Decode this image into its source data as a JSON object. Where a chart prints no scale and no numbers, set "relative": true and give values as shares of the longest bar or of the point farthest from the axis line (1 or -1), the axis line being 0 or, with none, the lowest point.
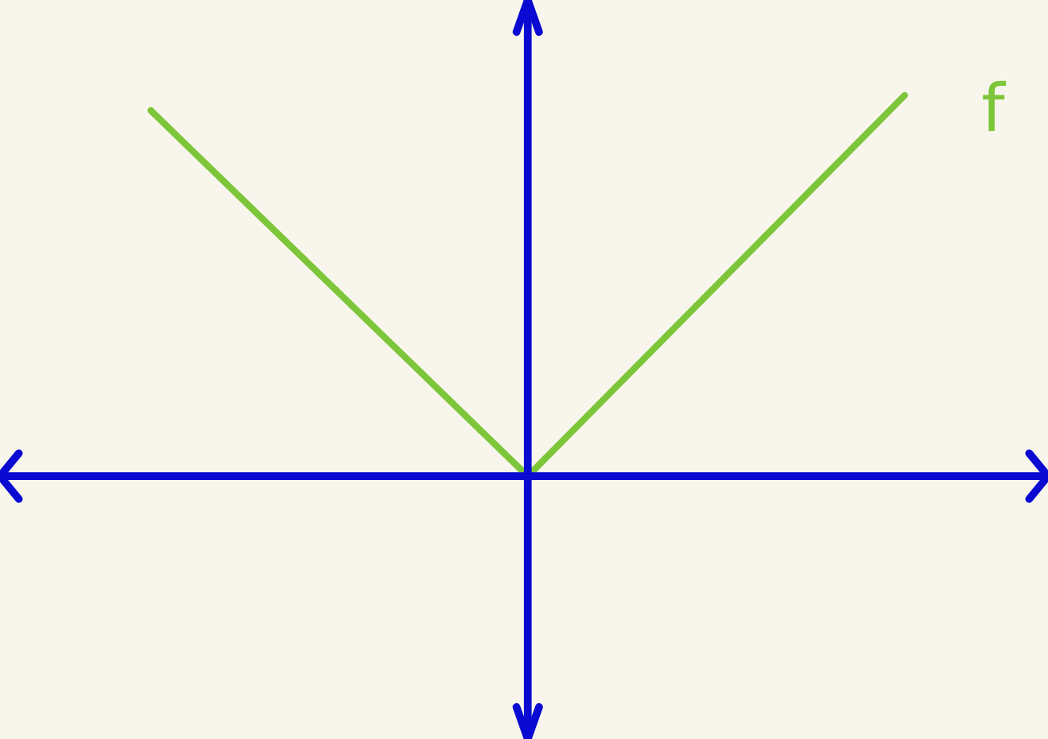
{
  "chart_data": {
    "type": "line",
    "relative": true,
    "categories": [
      null,
      null,
      null
    ],
    "series": [
      {
        "name": "f",
        "color": "#7dc63a",
        "values": [
          0.96,
          0,
          1
        ]
      }
    ],
    "legend": false,
    "marker": "none",
    "line_style": "solid"
  }
}
